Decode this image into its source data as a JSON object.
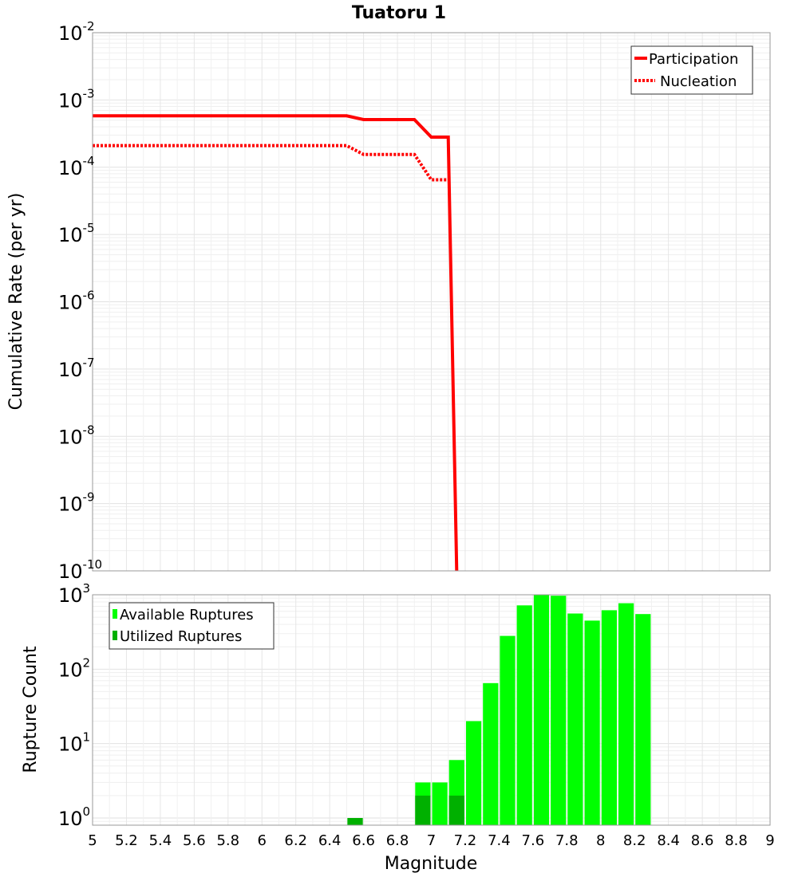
{
  "chart_data": [
    {
      "type": "line",
      "title": "Tuatoru 1",
      "xlabel": "Magnitude",
      "ylabel": "Cumulative Rate (per yr)",
      "xlim": [
        5,
        9
      ],
      "ylim": [
        1e-10,
        0.01
      ],
      "yscale": "log",
      "ytick_labels": [
        {
          "base": "10",
          "exp": "-10"
        },
        {
          "base": "10",
          "exp": "-9"
        },
        {
          "base": "10",
          "exp": "-8"
        },
        {
          "base": "10",
          "exp": "-7"
        },
        {
          "base": "10",
          "exp": "-6"
        },
        {
          "base": "10",
          "exp": "-5"
        },
        {
          "base": "10",
          "exp": "-4"
        },
        {
          "base": "10",
          "exp": "-3"
        },
        {
          "base": "10",
          "exp": "-2"
        }
      ],
      "legend": "top-right",
      "grid": true,
      "series": [
        {
          "name": "Participation",
          "style": "solid",
          "color": "#ff0000",
          "x": [
            5.0,
            6.5,
            6.6,
            6.9,
            7.0,
            7.1,
            7.15
          ],
          "y": [
            0.00058,
            0.00058,
            0.00051,
            0.00051,
            0.00028,
            0.00028,
            1e-10
          ]
        },
        {
          "name": "Nucleation",
          "style": "dotted",
          "color": "#ff0000",
          "x": [
            5.0,
            6.5,
            6.6,
            6.9,
            7.0,
            7.1
          ],
          "y": [
            0.00021,
            0.00021,
            0.000155,
            0.000155,
            6.5e-05,
            6.5e-05
          ]
        }
      ]
    },
    {
      "type": "bar",
      "xlabel": "Magnitude",
      "ylabel": "Rupture Count",
      "xlim": [
        5,
        9
      ],
      "ylim": [
        0.8,
        1000
      ],
      "yscale": "log",
      "ytick_labels": [
        {
          "base": "10",
          "exp": "0"
        },
        {
          "base": "10",
          "exp": "1"
        },
        {
          "base": "10",
          "exp": "2"
        },
        {
          "base": "10",
          "exp": "3"
        }
      ],
      "xtick_labels": [
        "5",
        "5.2",
        "5.4",
        "5.6",
        "5.8",
        "6",
        "6.2",
        "6.4",
        "6.6",
        "6.8",
        "7",
        "7.2",
        "7.4",
        "7.6",
        "7.8",
        "8",
        "8.2",
        "8.4",
        "8.6",
        "8.8",
        "9"
      ],
      "legend": "top-left",
      "grid": true,
      "bar_width": 0.1,
      "series": [
        {
          "name": "Available Ruptures",
          "color": "#00ff00",
          "x": [
            6.55,
            6.95,
            7.05,
            7.15,
            7.25,
            7.35,
            7.45,
            7.55,
            7.65,
            7.75,
            7.85,
            7.95,
            8.05,
            8.15,
            8.25
          ],
          "values": [
            1,
            3,
            3,
            6,
            20,
            65,
            280,
            720,
            1000,
            970,
            560,
            450,
            620,
            770,
            550
          ]
        },
        {
          "name": "Utilized Ruptures",
          "color": "#00b000",
          "x": [
            6.55,
            6.95,
            7.15
          ],
          "values": [
            1,
            2,
            2
          ]
        }
      ]
    }
  ]
}
